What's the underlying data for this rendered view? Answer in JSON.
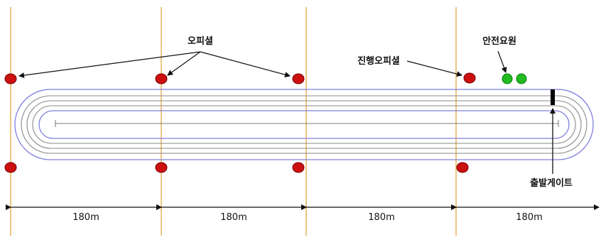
{
  "labels": {
    "officials": "오피셜",
    "head_official": "진행오피셜",
    "safety_staff": "안전요원",
    "start_gate": "출발게이트"
  },
  "distances": [
    "180m",
    "180m",
    "180m",
    "180m"
  ],
  "colors": {
    "official_marker": "#cc1010",
    "safety_marker": "#22bb22",
    "guide_line": "#e0a030",
    "track_outer": "#7f7fe0",
    "track_lane": "#888888"
  }
}
